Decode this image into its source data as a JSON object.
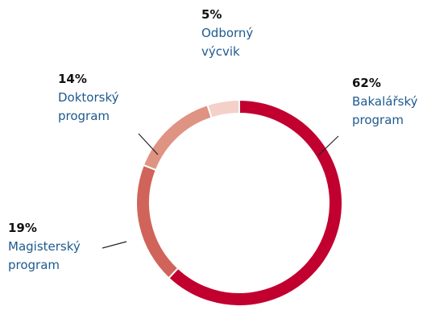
{
  "chart_data": {
    "type": "pie",
    "donut": true,
    "categories": [
      "Bakalářský program",
      "Magisterský program",
      "Doktorský program",
      "Odborný výcvik"
    ],
    "values": [
      62,
      19,
      14,
      5
    ],
    "value_labels": [
      "62%",
      "19%",
      "14%",
      "5%"
    ],
    "colors": [
      "#c1002f",
      "#d0645a",
      "#df9382",
      "#f3d1c8"
    ]
  }
}
